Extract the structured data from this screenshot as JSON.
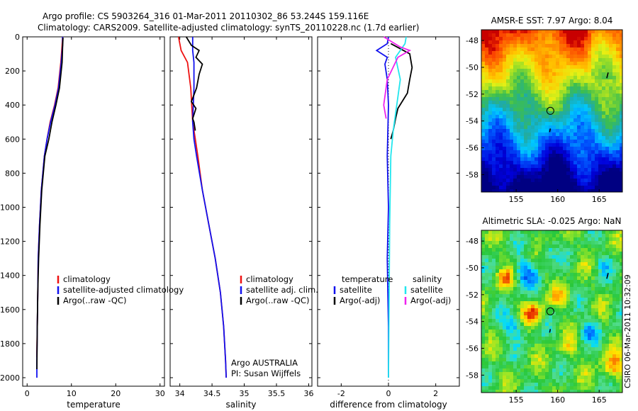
{
  "header": {
    "line1": "Argo profile: CS 5903264_316 01-Mar-2011 20110302_86 53.244S 159.116E",
    "line2": "Climatology: CARS2009. Satellite-adjusted climatology: synTS_20110228.nc (1.7d earlier)"
  },
  "colors": {
    "climatology": "#ee1111",
    "satellite": "#1111ee",
    "argo": "#000000",
    "sat_salinity": "#22e6ee",
    "argo_adj_salinity": "#ee22ee"
  },
  "footer_credit": "CSIRO 06-Mar-2011 10:32:09",
  "chart_data": [
    {
      "type": "line",
      "id": "temperature",
      "xlabel": "temperature",
      "ylabel": "",
      "xlim": [
        -1,
        31
      ],
      "ylim": [
        2050,
        0
      ],
      "xticks": [
        "0",
        "10",
        "20",
        "30"
      ],
      "yticks": [
        "0",
        "200",
        "400",
        "600",
        "800",
        "1000",
        "1200",
        "1400",
        "1600",
        "1800",
        "2000"
      ],
      "legend": [
        "climatology",
        "satellite-adjusted climatology",
        "Argo(..raw -QC)"
      ],
      "series": [
        {
          "name": "climatology",
          "color": "#ee1111",
          "x": [
            8.0,
            7.9,
            7.6,
            7.0,
            6.2,
            5.2,
            4.5,
            3.9,
            3.2,
            2.8,
            2.5,
            2.4,
            2.3,
            2.2,
            2.2
          ],
          "y": [
            0,
            50,
            150,
            300,
            400,
            500,
            600,
            700,
            900,
            1100,
            1300,
            1500,
            1700,
            1850,
            1880
          ]
        },
        {
          "name": "satellite-adjusted climatology",
          "color": "#1111ee",
          "x": [
            8.0,
            8.0,
            7.7,
            7.1,
            6.3,
            5.3,
            4.5,
            3.9,
            3.2,
            2.8,
            2.5,
            2.4,
            2.3,
            2.2,
            2.2
          ],
          "y": [
            0,
            50,
            150,
            300,
            400,
            500,
            600,
            700,
            900,
            1100,
            1300,
            1500,
            1700,
            1900,
            2000
          ]
        },
        {
          "name": "Argo(..raw -QC)",
          "color": "#000000",
          "x": [
            8.1,
            8.0,
            7.9,
            7.3,
            6.5,
            5.6,
            4.9,
            4.0,
            3.3,
            2.9,
            2.6,
            2.4,
            2.3,
            2.2
          ],
          "y": [
            5,
            60,
            150,
            300,
            400,
            500,
            600,
            700,
            900,
            1100,
            1300,
            1500,
            1700,
            1950
          ]
        }
      ]
    },
    {
      "type": "line",
      "id": "salinity",
      "xlabel": "salinity",
      "ylabel": "",
      "xlim": [
        33.85,
        36.05
      ],
      "ylim": [
        2050,
        0
      ],
      "xticks": [
        "34",
        "34.5",
        "35",
        "35.5",
        "36"
      ],
      "legend": [
        "climatology",
        "satellite adj. clim.",
        "Argo(..raw -QC)"
      ],
      "annotations": [
        "Argo AUSTRALIA",
        "PI: Susan Wijffels"
      ],
      "series": [
        {
          "name": "climatology",
          "color": "#ee1111",
          "x": [
            33.98,
            34.02,
            34.12,
            34.17,
            34.2,
            34.24,
            34.28,
            34.35,
            34.45,
            34.55,
            34.63,
            34.68,
            34.71,
            34.72
          ],
          "y": [
            0,
            80,
            150,
            300,
            500,
            600,
            700,
            900,
            1100,
            1300,
            1500,
            1700,
            1900,
            2000
          ]
        },
        {
          "name": "satellite adj. clim.",
          "color": "#1111ee",
          "x": [
            34.2,
            34.2,
            34.22,
            34.22,
            34.2,
            34.22,
            34.26,
            34.35,
            34.45,
            34.55,
            34.63,
            34.68,
            34.71,
            34.72
          ],
          "y": [
            0,
            80,
            150,
            300,
            500,
            600,
            700,
            900,
            1100,
            1300,
            1500,
            1700,
            1900,
            2000
          ]
        },
        {
          "name": "Argo(..raw -QC)",
          "color": "#000000",
          "x": [
            34.1,
            34.18,
            34.3,
            34.25,
            34.35,
            34.3,
            34.26,
            34.18,
            34.25,
            34.2,
            34.22,
            34.24
          ],
          "y": [
            0,
            50,
            80,
            120,
            160,
            220,
            300,
            380,
            420,
            480,
            500,
            550
          ]
        }
      ]
    },
    {
      "type": "line",
      "id": "difference",
      "xlabel": "difference from climatology",
      "ylabel": "",
      "xlim": [
        -3,
        3
      ],
      "ylim": [
        2050,
        0
      ],
      "xticks": [
        "-2",
        "0",
        "2"
      ],
      "legend_columns": [
        {
          "heading": "temperature",
          "entries": [
            "satellite",
            "Argo(-adj)"
          ]
        },
        {
          "heading": "salinity",
          "entries": [
            "satellite",
            "Argo(-adj)"
          ]
        }
      ],
      "series": [
        {
          "name": "temperature satellite",
          "color": "#1111ee",
          "x": [
            0.0,
            -0.05,
            -0.5,
            -0.05,
            -0.15,
            -0.05,
            0.0,
            -0.05,
            0.0,
            -0.05,
            0.0,
            0.0
          ],
          "y": [
            0,
            40,
            80,
            120,
            160,
            250,
            400,
            700,
            1000,
            1300,
            1700,
            2000
          ]
        },
        {
          "name": "temperature Argo(-adj)",
          "color": "#000000",
          "x": [
            0.1,
            0.9,
            1.0,
            0.9,
            0.8,
            0.4,
            0.3,
            0.2,
            0.1
          ],
          "y": [
            40,
            100,
            180,
            250,
            330,
            420,
            480,
            550,
            600
          ]
        },
        {
          "name": "salinity satellite",
          "color": "#22e6ee",
          "x": [
            0.75,
            0.7,
            0.3,
            0.5,
            0.35,
            0.2,
            0.1,
            0.05,
            0.0
          ],
          "y": [
            0,
            40,
            120,
            250,
            400,
            550,
            700,
            1100,
            2000
          ]
        },
        {
          "name": "salinity Argo(-adj)",
          "color": "#ee22ee",
          "x": [
            -0.2,
            0.5,
            0.9,
            0.4,
            -0.05,
            -0.2,
            -0.1
          ],
          "y": [
            0,
            60,
            80,
            120,
            250,
            400,
            480
          ]
        }
      ]
    },
    {
      "type": "heatmap",
      "id": "sst-map",
      "title": "AMSR-E SST: 7.97 Argo: 8.04",
      "xticks": [
        "155",
        "160",
        "165"
      ],
      "yticks": [
        "-48",
        "-50",
        "-52",
        "-54",
        "-56",
        "-58"
      ],
      "xlim": [
        150.8,
        167.8
      ],
      "ylim": [
        -59.3,
        -47.2
      ],
      "float_position": [
        159.116,
        -53.244
      ]
    },
    {
      "type": "heatmap",
      "id": "sla-map",
      "title": "Altimetric SLA: -0.025 Argo: NaN",
      "xticks": [
        "155",
        "160",
        "165"
      ],
      "yticks": [
        "-48",
        "-50",
        "-52",
        "-54",
        "-56",
        "-58"
      ],
      "xlim": [
        150.8,
        167.8
      ],
      "ylim": [
        -59.3,
        -47.2
      ],
      "float_position": [
        159.116,
        -53.244
      ]
    }
  ]
}
